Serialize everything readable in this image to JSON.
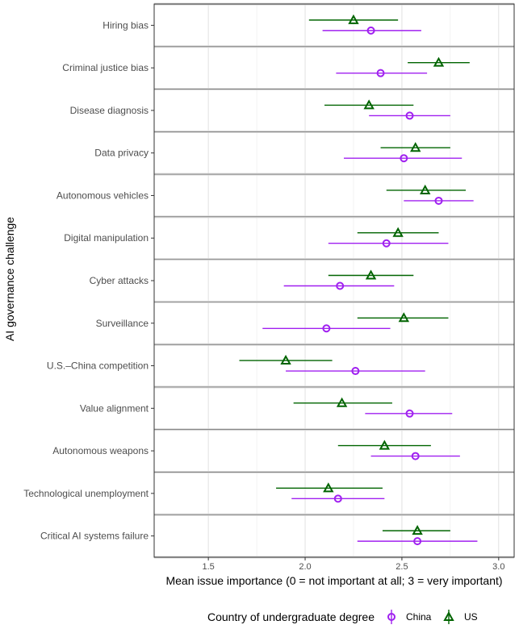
{
  "chart_data": {
    "type": "dot-whisker",
    "xlabel": "Mean issue importance (0 = not important at all; 3 = very important)",
    "ylabel": "AI governance challenge",
    "xlim": [
      1.22,
      3.08
    ],
    "xticks": [
      "1.5",
      "2.0",
      "2.5",
      "3.0"
    ],
    "grid": true,
    "legend": {
      "title": "Country of undergraduate degree",
      "position": "bottom",
      "entries": [
        "China",
        "US"
      ]
    },
    "colors": {
      "China": "#a020f0",
      "US": "#006400"
    },
    "categories": [
      "Hiring bias",
      "Criminal justice bias",
      "Disease diagnosis",
      "Data privacy",
      "Autonomous vehicles",
      "Digital manipulation",
      "Cyber attacks",
      "Surveillance",
      "U.S.–China competition",
      "Value alignment",
      "Autonomous weapons",
      "Technological unemployment",
      "Critical AI systems failure"
    ],
    "series": [
      {
        "name": "China",
        "marker": "circle",
        "mean": [
          2.34,
          2.39,
          2.54,
          2.51,
          2.69,
          2.42,
          2.18,
          2.11,
          2.26,
          2.54,
          2.57,
          2.17,
          2.58
        ],
        "lower": [
          2.09,
          2.16,
          2.33,
          2.2,
          2.51,
          2.12,
          1.89,
          1.78,
          1.9,
          2.31,
          2.34,
          1.93,
          2.27
        ],
        "upper": [
          2.6,
          2.63,
          2.75,
          2.81,
          2.87,
          2.74,
          2.46,
          2.44,
          2.62,
          2.76,
          2.8,
          2.41,
          2.89
        ]
      },
      {
        "name": "US",
        "marker": "triangle",
        "mean": [
          2.25,
          2.69,
          2.33,
          2.57,
          2.62,
          2.48,
          2.34,
          2.51,
          1.9,
          2.19,
          2.41,
          2.12,
          2.58
        ],
        "lower": [
          2.02,
          2.53,
          2.1,
          2.39,
          2.42,
          2.27,
          2.12,
          2.27,
          1.66,
          1.94,
          2.17,
          1.85,
          2.4
        ],
        "upper": [
          2.48,
          2.85,
          2.56,
          2.75,
          2.83,
          2.69,
          2.56,
          2.74,
          2.14,
          2.45,
          2.65,
          2.4,
          2.75
        ]
      }
    ]
  }
}
